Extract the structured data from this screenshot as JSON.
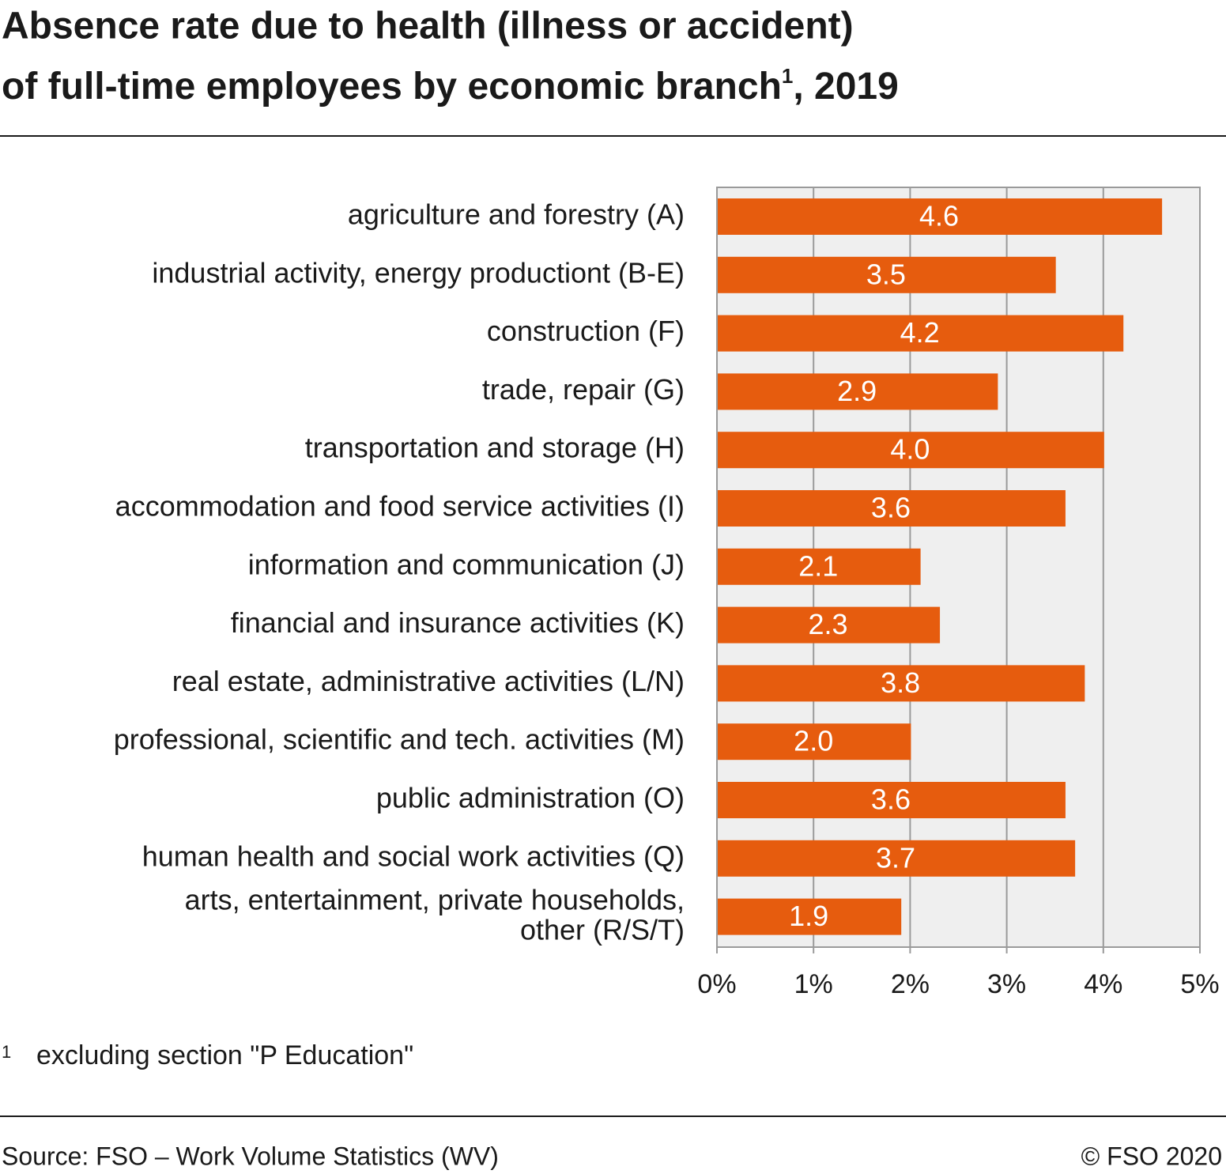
{
  "chart_data": {
    "type": "hbar",
    "title": [
      "Absence rate due to health (illness or accident)",
      "of full-time employees by economic branch"
    ],
    "title_note_mark": "1",
    "title_suffix": ", 2019",
    "categories": [
      "agriculture and forestry (A)",
      "industrial activity, energy productiont (B-E)",
      "construction (F)",
      "trade, repair (G)",
      "transportation and storage (H)",
      "accommodation and food service activities (I)",
      "information and communication (J)",
      "financial and insurance activities (K)",
      "real estate, administrative activities (L/N)",
      "professional, scientific and tech. activities (M)",
      "public administration (O)",
      "human health and social work activities (Q)",
      "arts, entertainment, private households,\nother (R/S/T)"
    ],
    "values": [
      4.6,
      3.5,
      4.2,
      2.9,
      4.0,
      3.6,
      2.1,
      2.3,
      3.8,
      2.0,
      3.6,
      3.7,
      1.9
    ],
    "value_labels": [
      "4.6",
      "3.5",
      "4.2",
      "2.9",
      "4.0",
      "3.6",
      "2.1",
      "2.3",
      "3.8",
      "2.0",
      "3.6",
      "3.7",
      "1.9"
    ],
    "color": "#e65c0e",
    "xlim": [
      0,
      5
    ],
    "xticks": [
      {
        "value": 0,
        "label": "0%"
      },
      {
        "value": 1,
        "label": "1%"
      },
      {
        "value": 2,
        "label": "2%"
      },
      {
        "value": 3,
        "label": "3%"
      },
      {
        "value": 4,
        "label": "4%"
      },
      {
        "value": 5,
        "label": "5%"
      }
    ],
    "grid": true,
    "footnote": {
      "mark": "1",
      "text": "excluding section \"P Education\""
    },
    "source": "Source: FSO – Work Volume Statistics (WV)",
    "copyright": "© FSO 2020"
  }
}
